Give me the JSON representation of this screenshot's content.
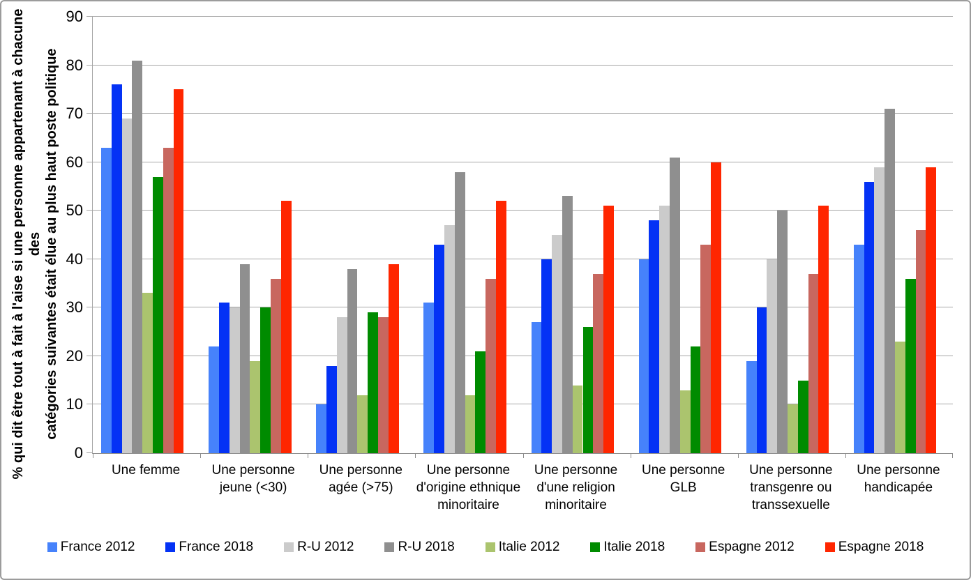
{
  "chart_data": {
    "type": "bar",
    "title": "",
    "ylabel": "% qui dit être tout à fait à l'aise si une personne appartenant à chacune des catégories suivantes était élue au plus haut poste politique",
    "ylabel_lines": [
      "% qui dit être tout à fait à l'aise si une personne appartenant à chacune des",
      "catégories suivantes était élue au plus haut poste politique"
    ],
    "xlabel": "",
    "ylim": [
      0,
      90
    ],
    "yticks": [
      0,
      10,
      20,
      30,
      40,
      50,
      60,
      70,
      80,
      90
    ],
    "grid": true,
    "legend_position": "bottom",
    "categories": [
      "Une femme",
      "Une personne jeune (<30)",
      "Une personne agée (>75)",
      "Une personne d'origine ethnique minoritaire",
      "Une personne d'une religion minoritaire",
      "Une personne GLB",
      "Une personne transgenre ou transsexuelle",
      "Une personne handicapée"
    ],
    "series": [
      {
        "name": "France 2012",
        "color": "#4682FB",
        "values": [
          63,
          22,
          10,
          31,
          27,
          40,
          19,
          43
        ]
      },
      {
        "name": "France 2018",
        "color": "#0432F5",
        "values": [
          76,
          31,
          18,
          43,
          40,
          48,
          30,
          56
        ]
      },
      {
        "name": "R-U 2012",
        "color": "#CBCBCB",
        "values": [
          69,
          30,
          28,
          47,
          45,
          51,
          40,
          59
        ]
      },
      {
        "name": "R-U 2018",
        "color": "#8F8F8F",
        "values": [
          81,
          39,
          38,
          58,
          53,
          61,
          50,
          71
        ]
      },
      {
        "name": "Italie 2012",
        "color": "#ABC46E",
        "values": [
          33,
          19,
          12,
          12,
          14,
          13,
          10,
          23
        ]
      },
      {
        "name": "Italie 2018",
        "color": "#008B00",
        "values": [
          57,
          30,
          29,
          21,
          26,
          22,
          15,
          36
        ]
      },
      {
        "name": "Espagne 2012",
        "color": "#C8675F",
        "values": [
          63,
          36,
          28,
          36,
          37,
          43,
          37,
          46
        ]
      },
      {
        "name": "Espagne 2018",
        "color": "#FF2600",
        "values": [
          75,
          52,
          39,
          52,
          51,
          60,
          51,
          59
        ]
      }
    ]
  },
  "colors": {
    "grid": "#A6A6A6",
    "axis": "#8C8C8C",
    "frame_border": "#9C9C9C",
    "background": "#FFFFFF",
    "text": "#000000"
  }
}
